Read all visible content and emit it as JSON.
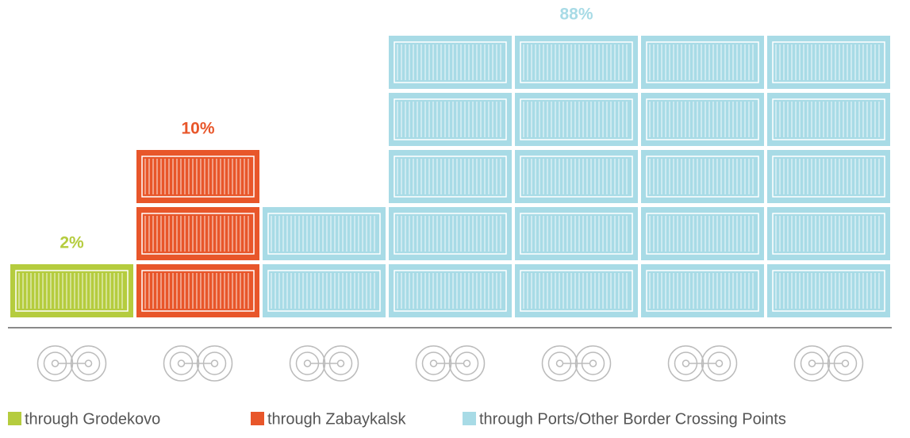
{
  "chart_data": {
    "type": "container-stack",
    "series": [
      {
        "name": "through Grodekovo",
        "color": "#b5cc3e",
        "values": [
          2
        ],
        "value_labels": [
          "2%"
        ]
      },
      {
        "name": "through Zabaykalsk",
        "color": "#e8562a",
        "values": [
          10
        ],
        "value_labels": [
          "10%"
        ]
      },
      {
        "name": "through Ports/Other Border Crossing Points",
        "color": "#a8dbe6",
        "values": [
          88
        ],
        "value_labels": [
          "88%"
        ]
      }
    ]
  }
}
